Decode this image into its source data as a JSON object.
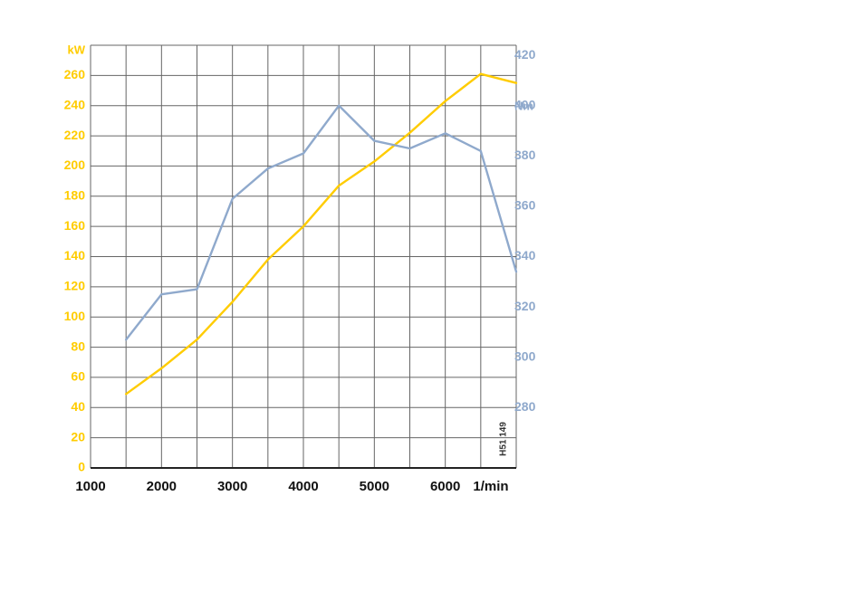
{
  "chart_data": {
    "type": "line",
    "x_ticks": [
      1000,
      2000,
      3000,
      4000,
      5000,
      6000
    ],
    "x_unit_label": "1/min",
    "x_range": [
      1000,
      7000
    ],
    "left_axis": {
      "unit": "kW",
      "ticks": [
        0,
        20,
        40,
        60,
        80,
        100,
        120,
        140,
        160,
        180,
        200,
        220,
        240,
        260
      ],
      "range": [
        0,
        280
      ]
    },
    "right_axis": {
      "unit": "Nm",
      "ticks": [
        280,
        300,
        320,
        340,
        360,
        380,
        400,
        420
      ],
      "range": [
        256,
        424
      ]
    },
    "series": [
      {
        "axis": "left",
        "color": "#ffcc00",
        "points": [
          [
            1500,
            49
          ],
          [
            2000,
            66
          ],
          [
            2500,
            85
          ],
          [
            3000,
            110
          ],
          [
            3500,
            138
          ],
          [
            4000,
            160
          ],
          [
            4500,
            187
          ],
          [
            5000,
            203
          ],
          [
            5500,
            222
          ],
          [
            6000,
            243
          ],
          [
            6500,
            261
          ],
          [
            7000,
            255
          ]
        ]
      },
      {
        "axis": "right",
        "color": "#8fa9cc",
        "points": [
          [
            1500,
            307
          ],
          [
            2000,
            325
          ],
          [
            2500,
            327
          ],
          [
            3000,
            363
          ],
          [
            3500,
            375
          ],
          [
            4000,
            381
          ],
          [
            4500,
            400
          ],
          [
            5000,
            386
          ],
          [
            5500,
            383
          ],
          [
            6000,
            389
          ],
          [
            6500,
            382
          ],
          [
            7000,
            334
          ]
        ]
      }
    ],
    "grid": true,
    "code_label": "H51 149"
  },
  "colors": {
    "power": "#ffcc00",
    "torque": "#8fa9cc",
    "grid": "#666666",
    "x_labels": "#111111"
  }
}
